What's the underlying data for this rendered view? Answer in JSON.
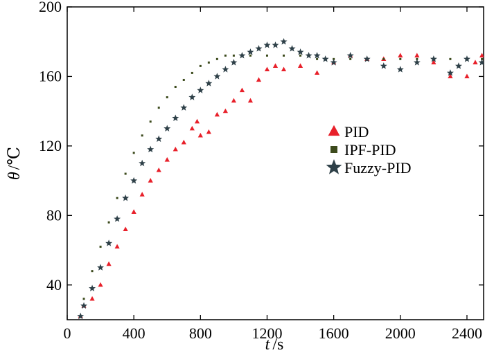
{
  "chart_data": {
    "type": "scatter",
    "xlabel_var": "t",
    "xlabel_unit": "/s",
    "ylabel_var": "θ",
    "ylabel_unit": "/℃",
    "xlim": [
      0,
      2500
    ],
    "ylim": [
      20,
      200
    ],
    "xticks": [
      0,
      400,
      800,
      1200,
      1600,
      2000,
      2400
    ],
    "yticks": [
      40,
      80,
      120,
      160,
      200
    ],
    "xtick_labels": [
      "0",
      "400",
      "800",
      "1200",
      "1600",
      "2000",
      "2400"
    ],
    "ytick_labels": [
      "40",
      "80",
      "120",
      "160",
      "200"
    ],
    "grid": false,
    "legend_position": "right-middle",
    "series": [
      {
        "name": "PID",
        "marker": "triangle",
        "color": "#e8202a",
        "points": [
          [
            80,
            22
          ],
          [
            100,
            28
          ],
          [
            150,
            32
          ],
          [
            200,
            40
          ],
          [
            250,
            52
          ],
          [
            300,
            62
          ],
          [
            350,
            72
          ],
          [
            400,
            82
          ],
          [
            450,
            92
          ],
          [
            500,
            100
          ],
          [
            550,
            106
          ],
          [
            600,
            112
          ],
          [
            650,
            118
          ],
          [
            700,
            122
          ],
          [
            750,
            130
          ],
          [
            780,
            134
          ],
          [
            800,
            126
          ],
          [
            850,
            128
          ],
          [
            900,
            138
          ],
          [
            950,
            140
          ],
          [
            1000,
            146
          ],
          [
            1050,
            152
          ],
          [
            1100,
            146
          ],
          [
            1150,
            158
          ],
          [
            1200,
            164
          ],
          [
            1250,
            166
          ],
          [
            1300,
            164
          ],
          [
            1400,
            166
          ],
          [
            1500,
            162
          ],
          [
            1600,
            168
          ],
          [
            1700,
            172
          ],
          [
            1800,
            170
          ],
          [
            1900,
            170
          ],
          [
            2000,
            172
          ],
          [
            2100,
            172
          ],
          [
            2200,
            168
          ],
          [
            2300,
            160
          ],
          [
            2400,
            160
          ],
          [
            2450,
            168
          ],
          [
            2490,
            172
          ]
        ]
      },
      {
        "name": "IPF-PID",
        "marker": "square",
        "color": "#3c4a1c",
        "points": [
          [
            80,
            22
          ],
          [
            100,
            32
          ],
          [
            150,
            48
          ],
          [
            200,
            62
          ],
          [
            250,
            76
          ],
          [
            300,
            90
          ],
          [
            350,
            104
          ],
          [
            400,
            116
          ],
          [
            450,
            126
          ],
          [
            500,
            134
          ],
          [
            550,
            142
          ],
          [
            600,
            148
          ],
          [
            650,
            154
          ],
          [
            700,
            158
          ],
          [
            750,
            162
          ],
          [
            800,
            166
          ],
          [
            850,
            168
          ],
          [
            900,
            170
          ],
          [
            950,
            172
          ],
          [
            1000,
            172
          ],
          [
            1100,
            172
          ],
          [
            1200,
            172
          ],
          [
            1300,
            172
          ],
          [
            1400,
            172
          ],
          [
            1500,
            170
          ],
          [
            1600,
            170
          ],
          [
            1700,
            170
          ],
          [
            1800,
            170
          ],
          [
            1900,
            170
          ],
          [
            2000,
            170
          ],
          [
            2100,
            170
          ],
          [
            2200,
            170
          ],
          [
            2300,
            170
          ],
          [
            2400,
            170
          ],
          [
            2490,
            170
          ]
        ]
      },
      {
        "name": "Fuzzy-PID",
        "marker": "star",
        "color": "#2e4048",
        "points": [
          [
            80,
            22
          ],
          [
            100,
            28
          ],
          [
            150,
            38
          ],
          [
            200,
            50
          ],
          [
            250,
            64
          ],
          [
            300,
            78
          ],
          [
            350,
            90
          ],
          [
            400,
            100
          ],
          [
            450,
            110
          ],
          [
            500,
            118
          ],
          [
            550,
            124
          ],
          [
            600,
            130
          ],
          [
            650,
            136
          ],
          [
            700,
            142
          ],
          [
            750,
            148
          ],
          [
            800,
            152
          ],
          [
            850,
            156
          ],
          [
            900,
            160
          ],
          [
            950,
            164
          ],
          [
            1000,
            168
          ],
          [
            1050,
            172
          ],
          [
            1100,
            174
          ],
          [
            1150,
            176
          ],
          [
            1200,
            178
          ],
          [
            1250,
            178
          ],
          [
            1300,
            180
          ],
          [
            1350,
            176
          ],
          [
            1400,
            174
          ],
          [
            1450,
            172
          ],
          [
            1500,
            172
          ],
          [
            1550,
            170
          ],
          [
            1600,
            168
          ],
          [
            1700,
            172
          ],
          [
            1800,
            170
          ],
          [
            1900,
            166
          ],
          [
            2000,
            164
          ],
          [
            2100,
            168
          ],
          [
            2200,
            170
          ],
          [
            2300,
            162
          ],
          [
            2350,
            166
          ],
          [
            2400,
            170
          ],
          [
            2490,
            168
          ]
        ]
      }
    ]
  }
}
